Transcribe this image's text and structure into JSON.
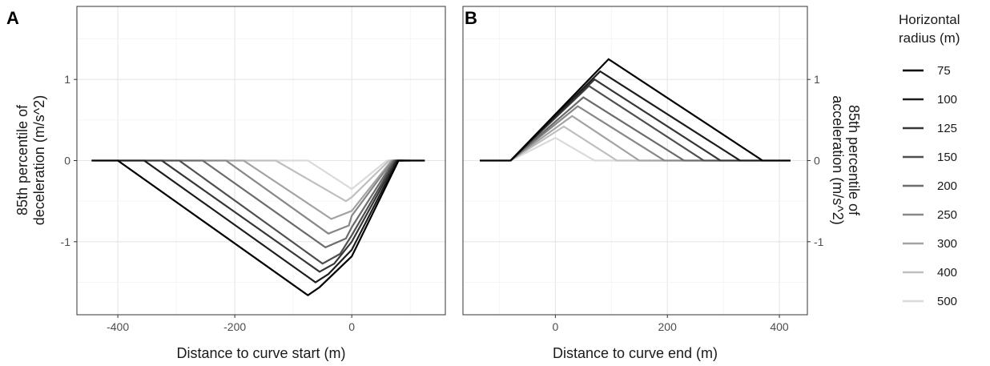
{
  "panel_a": {
    "tag": "A",
    "xlabel": "Distance to curve start (m)",
    "ylabel_line1": "85th percentile of",
    "ylabel_line2": "deceleration (m/s^2)"
  },
  "panel_b": {
    "tag": "B",
    "xlabel": "Distance to curve end (m)",
    "ylabel_line1": "85th percentile of",
    "ylabel_line2": "acceleration (m/s^2)"
  },
  "legend": {
    "title_line1": "Horizontal",
    "title_line2": "radius (m)"
  },
  "chart_data": [
    {
      "type": "line",
      "panel": "A",
      "xlabel": "Distance to curve start (m)",
      "ylabel": "85th percentile of deceleration (m/s^2)",
      "xlim": [
        -470,
        160
      ],
      "ylim": [
        -1.9,
        1.9
      ],
      "x_ticks": [
        -400,
        -200,
        0
      ],
      "x_tick_labels": [
        "-400",
        "-200",
        "0"
      ],
      "y_ticks": [
        -1,
        0,
        1
      ],
      "y_tick_labels": [
        "-1",
        "0",
        "1"
      ],
      "grid": true,
      "series": [
        {
          "name": "75",
          "color": "#000000",
          "x": [
            -445,
            -400,
            -75,
            -55,
            0,
            80,
            125
          ],
          "y": [
            0,
            0,
            -1.66,
            -1.56,
            -1.18,
            0,
            0
          ]
        },
        {
          "name": "100",
          "color": "#1c1c1c",
          "x": [
            -400,
            -355,
            -62,
            -40,
            0,
            78,
            100
          ],
          "y": [
            0,
            0,
            -1.5,
            -1.4,
            -1.1,
            0,
            0
          ]
        },
        {
          "name": "125",
          "color": "#363636",
          "x": [
            -355,
            -325,
            -55,
            -30,
            0,
            76,
            90
          ],
          "y": [
            0,
            0,
            -1.37,
            -1.27,
            -1.0,
            0,
            0
          ]
        },
        {
          "name": "150",
          "color": "#4f4f4f",
          "x": [
            -325,
            -295,
            -50,
            -20,
            0,
            74,
            85
          ],
          "y": [
            0,
            0,
            -1.27,
            -1.15,
            -0.92,
            0,
            0
          ]
        },
        {
          "name": "200",
          "color": "#6b6b6b",
          "x": [
            -295,
            -255,
            -45,
            -10,
            0,
            72,
            80
          ],
          "y": [
            0,
            0,
            -1.07,
            -0.96,
            -0.82,
            0,
            0
          ]
        },
        {
          "name": "250",
          "color": "#878787",
          "x": [
            -255,
            -215,
            -40,
            -5,
            0,
            70,
            78
          ],
          "y": [
            0,
            0,
            -0.9,
            -0.8,
            -0.68,
            0,
            0
          ]
        },
        {
          "name": "300",
          "color": "#a3a3a3",
          "x": [
            -215,
            -185,
            -35,
            0,
            68,
            76
          ],
          "y": [
            0,
            0,
            -0.72,
            -0.62,
            0,
            0
          ]
        },
        {
          "name": "400",
          "color": "#bfbfbf",
          "x": [
            -185,
            -130,
            -10,
            0,
            64,
            72
          ],
          "y": [
            0,
            0,
            -0.5,
            -0.45,
            0,
            0
          ]
        },
        {
          "name": "500",
          "color": "#dadada",
          "x": [
            -130,
            -75,
            0,
            60,
            70
          ],
          "y": [
            0,
            0,
            -0.35,
            0,
            0
          ]
        }
      ]
    },
    {
      "type": "line",
      "panel": "B",
      "xlabel": "Distance to curve end (m)",
      "ylabel": "85th percentile of acceleration (m/s^2)",
      "xlim": [
        -165,
        450
      ],
      "ylim": [
        -1.9,
        1.9
      ],
      "x_ticks": [
        0,
        200,
        400
      ],
      "x_tick_labels": [
        "0",
        "200",
        "400"
      ],
      "y_ticks": [
        -1,
        0,
        1
      ],
      "y_tick_labels": [
        "-1",
        "0",
        "1"
      ],
      "grid": true,
      "series": [
        {
          "name": "75",
          "color": "#000000",
          "x": [
            -135,
            -80,
            95,
            370,
            420
          ],
          "y": [
            0,
            0,
            1.25,
            0,
            0
          ]
        },
        {
          "name": "100",
          "color": "#1c1c1c",
          "x": [
            -80,
            80,
            330,
            370
          ],
          "y": [
            0,
            1.1,
            0,
            0
          ]
        },
        {
          "name": "125",
          "color": "#363636",
          "x": [
            -80,
            70,
            295,
            330
          ],
          "y": [
            0,
            1.0,
            0,
            0
          ]
        },
        {
          "name": "150",
          "color": "#4f4f4f",
          "x": [
            -80,
            60,
            265,
            295
          ],
          "y": [
            0,
            0.92,
            0,
            0
          ]
        },
        {
          "name": "200",
          "color": "#6b6b6b",
          "x": [
            -80,
            50,
            230,
            265
          ],
          "y": [
            0,
            0.78,
            0,
            0
          ]
        },
        {
          "name": "250",
          "color": "#878787",
          "x": [
            -80,
            40,
            195,
            230
          ],
          "y": [
            0,
            0.67,
            0,
            0
          ]
        },
        {
          "name": "300",
          "color": "#a3a3a3",
          "x": [
            -80,
            30,
            150,
            195
          ],
          "y": [
            0,
            0.55,
            0,
            0
          ]
        },
        {
          "name": "400",
          "color": "#bfbfbf",
          "x": [
            -80,
            15,
            110,
            150
          ],
          "y": [
            0,
            0.42,
            0,
            0
          ]
        },
        {
          "name": "500",
          "color": "#dadada",
          "x": [
            -80,
            0,
            70,
            110
          ],
          "y": [
            0,
            0.28,
            0,
            0
          ]
        }
      ]
    }
  ]
}
